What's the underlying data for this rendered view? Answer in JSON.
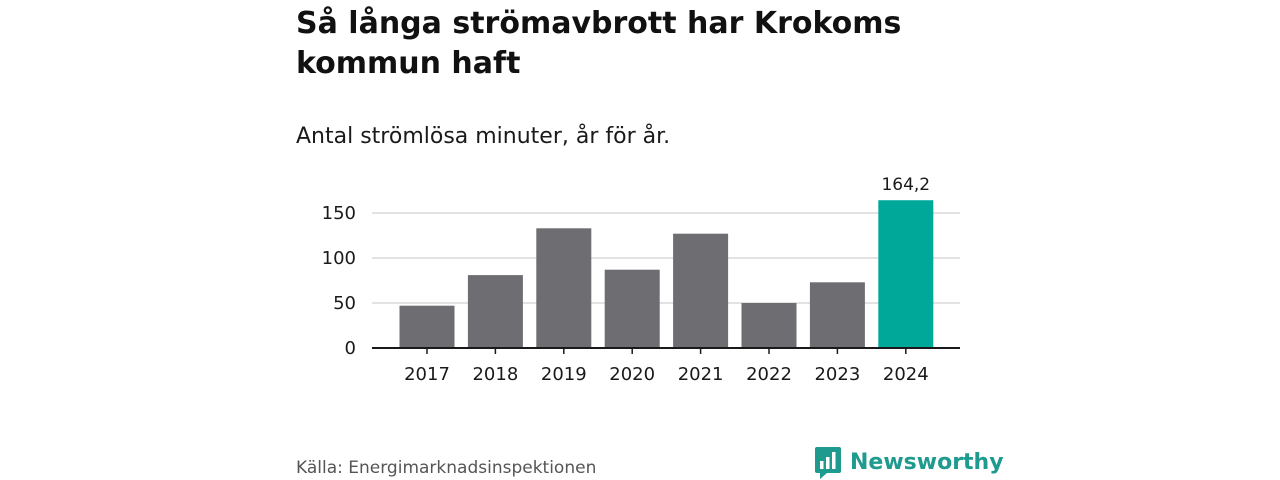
{
  "header": {
    "title": "Så långa strömavbrott har Krokoms kommun haft",
    "subtitle": "Antal strömlösa minuter, år för år."
  },
  "footer": {
    "source": "Källa: Energimarknadsinspektionen",
    "brand": "Newsworthy",
    "brand_icon": "bar-chart-speech-bubble-icon"
  },
  "colors": {
    "bar_default": "#6e6d72",
    "bar_highlight": "#00a89a",
    "gridline": "#d9d9d9",
    "axis": "#1a1a1a",
    "brand": "#1e9a8e"
  },
  "chart_data": {
    "type": "bar",
    "title": "Så långa strömavbrott har Krokoms kommun haft",
    "subtitle": "Antal strömlösa minuter, år för år.",
    "xlabel": "",
    "ylabel": "",
    "categories": [
      "2017",
      "2018",
      "2019",
      "2020",
      "2021",
      "2022",
      "2023",
      "2024"
    ],
    "values": [
      47,
      81,
      133,
      87,
      127,
      50,
      73,
      164.2
    ],
    "highlight_index": 7,
    "data_labels": [
      {
        "index": 7,
        "text": "164,2"
      }
    ],
    "yticks": [
      0,
      50,
      100,
      150
    ],
    "ylim": [
      0,
      165
    ],
    "grid": true,
    "legend": "none"
  }
}
